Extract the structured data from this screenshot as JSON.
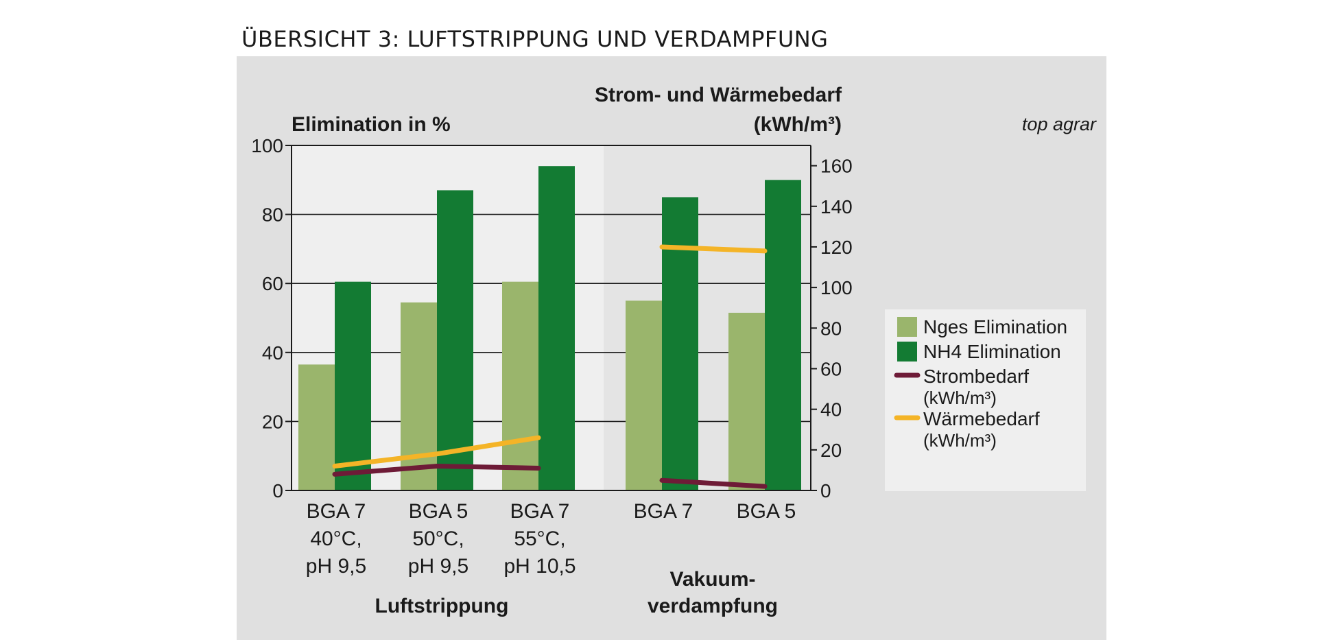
{
  "title": "ÜBERSICHT 3: LUFTSTRIPPUNG UND VERDAMPFUNG",
  "source": "top agrar",
  "colors": {
    "panel": "#e0e0e0",
    "plot_left": "#efefef",
    "plot_right": "#e4e4e4",
    "nges": "#9ab56c",
    "nh4": "#137b33",
    "strom": "#6e1b37",
    "waerme": "#f4b427"
  },
  "chart_data": {
    "type": "bar",
    "ylabel_left": "Elimination in %",
    "ylabel_right_line1": "Strom- und Wärmebedarf",
    "ylabel_right_line2": "(kWh/m³)",
    "ylim_left": [
      0,
      100
    ],
    "ylim_right": [
      0,
      170
    ],
    "left_ticks": [
      "0",
      "20",
      "40",
      "60",
      "80",
      "100"
    ],
    "right_ticks": [
      "0",
      "20",
      "40",
      "60",
      "80",
      "100",
      "120",
      "140",
      "160"
    ],
    "categories": [
      {
        "lines": [
          "BGA 7",
          "40°C,",
          "pH 9,5"
        ]
      },
      {
        "lines": [
          "BGA 5",
          "50°C,",
          "pH 9,5"
        ]
      },
      {
        "lines": [
          "BGA 7",
          "55°C,",
          "pH 10,5"
        ]
      },
      {
        "lines": [
          "BGA 7"
        ]
      },
      {
        "lines": [
          "BGA 5"
        ]
      }
    ],
    "groups": [
      {
        "lines": [
          "Luftstrippung"
        ]
      },
      {
        "lines": [
          "Vakuum-",
          "verdampfung"
        ]
      }
    ],
    "series": [
      {
        "name": "Nges Elimination",
        "axis": "left",
        "kind": "bar",
        "values": [
          36.5,
          54.5,
          60.5,
          55,
          51.5
        ]
      },
      {
        "name": "NH4 Elimination",
        "axis": "left",
        "kind": "bar",
        "values": [
          60.5,
          87,
          94,
          85,
          90
        ]
      },
      {
        "name": "Strombedarf",
        "name2": "(kWh/m³)",
        "axis": "right",
        "kind": "line",
        "segments": [
          [
            {
              "x": 0,
              "y": 8
            },
            {
              "x": 1,
              "y": 12
            },
            {
              "x": 2,
              "y": 11
            }
          ],
          [
            {
              "x": 3,
              "y": 5
            },
            {
              "x": 4,
              "y": 2
            }
          ]
        ]
      },
      {
        "name": "Wärmebedarf",
        "name2": "(kWh/m³)",
        "axis": "right",
        "kind": "line",
        "segments": [
          [
            {
              "x": 0,
              "y": 12
            },
            {
              "x": 1,
              "y": 18
            },
            {
              "x": 2,
              "y": 26
            }
          ],
          [
            {
              "x": 3,
              "y": 120
            },
            {
              "x": 4,
              "y": 118
            }
          ]
        ]
      }
    ],
    "grid": true,
    "legend_position": "right"
  }
}
